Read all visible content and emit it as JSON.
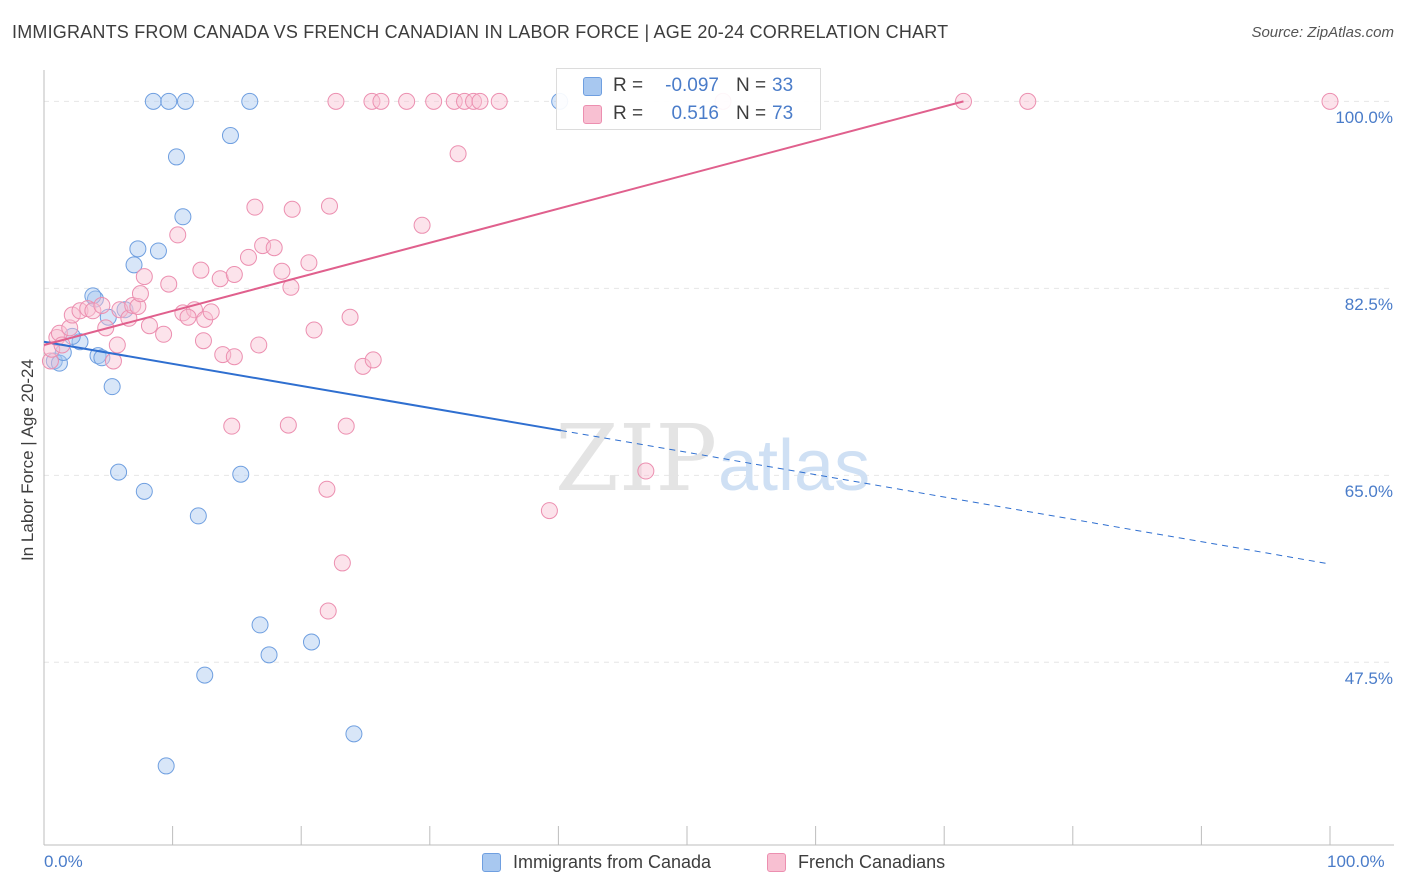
{
  "header": {
    "title": "IMMIGRANTS FROM CANADA VS FRENCH CANADIAN IN LABOR FORCE | AGE 20-24 CORRELATION CHART",
    "source": "Source: ZipAtlas.com"
  },
  "watermark": {
    "part1": "ZIP",
    "part2": "atlas"
  },
  "stats": [
    {
      "r_label": "R =",
      "r_value": "-0.097",
      "n_label": "N =",
      "n_value": "33",
      "color": "#a8c8f0",
      "stroke": "#6f9fe0"
    },
    {
      "r_label": "R =",
      "r_value": "0.516",
      "n_label": "N =",
      "n_value": "73",
      "color": "#f8c0d2",
      "stroke": "#ec8fb0"
    }
  ],
  "chart_data": {
    "type": "scatter",
    "title": "IMMIGRANTS FROM CANADA VS FRENCH CANADIAN IN LABOR FORCE | AGE 20-24 CORRELATION CHART",
    "xlabel": "",
    "ylabel": "In Labor Force | Age 20-24",
    "xlim": [
      0,
      100
    ],
    "ylim": [
      30.4,
      102
    ],
    "x_tick_labels": [
      {
        "value": 0,
        "label": "0.0%"
      },
      {
        "value": 100,
        "label": "100.0%"
      }
    ],
    "y_tick_labels": [
      {
        "value": 47.5,
        "label": "47.5%"
      },
      {
        "value": 65.0,
        "label": "65.0%"
      },
      {
        "value": 82.5,
        "label": "82.5%"
      },
      {
        "value": 100.0,
        "label": "100.0%"
      }
    ],
    "grid": true,
    "legend_position": "bottom",
    "series": [
      {
        "name": "Immigrants from Canada",
        "color": "#a8c8f0",
        "stroke": "#6f9fe0",
        "line_color": "#2f6fd0",
        "trend": {
          "x0": 0,
          "y0": 77.5,
          "x1": 40.2,
          "y1": 69.2,
          "dash_to_x": 100,
          "dash_to_y": 56.7
        },
        "points": [
          [
            0.8,
            75.7
          ],
          [
            1.2,
            75.5
          ],
          [
            1.5,
            76.5
          ],
          [
            4.0,
            81.5
          ],
          [
            3.8,
            81.8
          ],
          [
            2.8,
            77.5
          ],
          [
            2.2,
            78.0
          ],
          [
            4.2,
            76.2
          ],
          [
            4.5,
            76.0
          ],
          [
            5.0,
            79.8
          ],
          [
            6.3,
            80.5
          ],
          [
            5.3,
            73.3
          ],
          [
            7.0,
            84.7
          ],
          [
            7.3,
            86.2
          ],
          [
            8.9,
            86.0
          ],
          [
            10.3,
            94.8
          ],
          [
            10.8,
            89.2
          ],
          [
            14.5,
            96.8
          ],
          [
            8.5,
            100.0
          ],
          [
            9.7,
            100.0
          ],
          [
            11.0,
            100.0
          ],
          [
            16.0,
            100.0
          ],
          [
            40.1,
            100.0
          ],
          [
            5.8,
            65.3
          ],
          [
            7.8,
            63.5
          ],
          [
            15.3,
            65.1
          ],
          [
            12.0,
            61.2
          ],
          [
            16.8,
            51.0
          ],
          [
            17.5,
            48.2
          ],
          [
            20.8,
            49.4
          ],
          [
            12.5,
            46.3
          ],
          [
            24.1,
            40.8
          ],
          [
            9.5,
            37.8
          ]
        ]
      },
      {
        "name": "French Canadians",
        "color": "#f8c0d2",
        "stroke": "#ec8fb0",
        "line_color": "#e0608d",
        "trend": {
          "x0": 0,
          "y0": 77.2,
          "x1": 71.5,
          "y1": 100.0
        },
        "points": [
          [
            0.5,
            75.7
          ],
          [
            0.6,
            76.8
          ],
          [
            1.0,
            77.9
          ],
          [
            1.2,
            78.3
          ],
          [
            1.4,
            77.2
          ],
          [
            2.0,
            78.8
          ],
          [
            2.2,
            80.0
          ],
          [
            2.8,
            80.4
          ],
          [
            3.4,
            80.6
          ],
          [
            3.8,
            80.4
          ],
          [
            4.5,
            80.9
          ],
          [
            4.8,
            78.8
          ],
          [
            5.4,
            75.7
          ],
          [
            5.7,
            77.2
          ],
          [
            5.9,
            80.5
          ],
          [
            6.6,
            79.7
          ],
          [
            6.9,
            80.9
          ],
          [
            7.3,
            80.8
          ],
          [
            7.5,
            82.0
          ],
          [
            7.8,
            83.6
          ],
          [
            8.2,
            79.0
          ],
          [
            9.3,
            78.2
          ],
          [
            9.7,
            82.9
          ],
          [
            10.4,
            87.5
          ],
          [
            10.8,
            80.2
          ],
          [
            11.7,
            80.5
          ],
          [
            11.2,
            79.8
          ],
          [
            12.2,
            84.2
          ],
          [
            12.4,
            77.6
          ],
          [
            12.5,
            79.6
          ],
          [
            13.0,
            80.3
          ],
          [
            13.9,
            76.3
          ],
          [
            13.7,
            83.4
          ],
          [
            14.8,
            83.8
          ],
          [
            14.8,
            76.1
          ],
          [
            15.9,
            85.4
          ],
          [
            16.4,
            90.1
          ],
          [
            16.7,
            77.2
          ],
          [
            17.0,
            86.5
          ],
          [
            17.9,
            86.3
          ],
          [
            18.5,
            84.1
          ],
          [
            19.2,
            82.6
          ],
          [
            19.3,
            89.9
          ],
          [
            20.6,
            84.9
          ],
          [
            21.0,
            78.6
          ],
          [
            22.2,
            90.2
          ],
          [
            23.8,
            79.8
          ],
          [
            24.8,
            75.2
          ],
          [
            25.6,
            75.8
          ],
          [
            29.4,
            88.4
          ],
          [
            32.2,
            95.1
          ],
          [
            14.6,
            69.6
          ],
          [
            19.0,
            69.7
          ],
          [
            23.5,
            69.6
          ],
          [
            22.0,
            63.7
          ],
          [
            23.2,
            56.8
          ],
          [
            22.1,
            52.3
          ],
          [
            39.3,
            61.7
          ],
          [
            46.8,
            65.4
          ],
          [
            22.7,
            100.0
          ],
          [
            25.5,
            100.0
          ],
          [
            26.2,
            100.0
          ],
          [
            28.2,
            100.0
          ],
          [
            30.3,
            100.0
          ],
          [
            31.9,
            100.0
          ],
          [
            32.7,
            100.0
          ],
          [
            33.4,
            100.0
          ],
          [
            33.9,
            100.0
          ],
          [
            35.4,
            100.0
          ],
          [
            52.8,
            100.0
          ],
          [
            71.5,
            100.0
          ],
          [
            76.5,
            100.0
          ],
          [
            100.0,
            100.0
          ]
        ]
      }
    ]
  }
}
